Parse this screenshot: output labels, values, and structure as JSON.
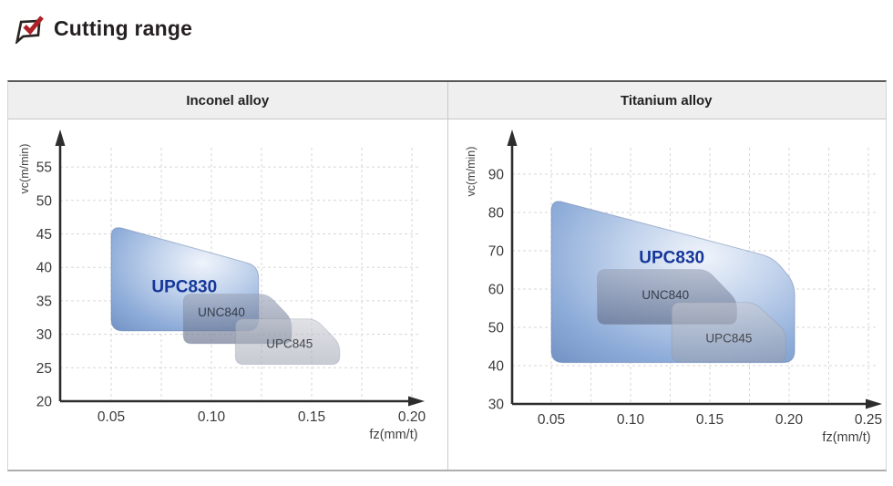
{
  "page_title": {
    "label": "Cutting range"
  },
  "title_icon": {
    "name": "checked-box-icon",
    "box_color": "#2a2423",
    "check_color": "#ae2025"
  },
  "panel_headers": {
    "left": "Inconel alloy",
    "right": "Titanium alloy"
  },
  "region_label_colors": {
    "UPC830": "#16379a",
    "UNC840": "#363d4b",
    "UPC845": "#46494f"
  },
  "chart_data": [
    {
      "type": "area",
      "panel": "Inconel alloy",
      "xlabel": "fz(mm/t)",
      "ylabel": "vc(m/min)",
      "xticks": [
        0.05,
        0.1,
        0.15,
        0.2
      ],
      "yticks": [
        20,
        25,
        30,
        35,
        40,
        45,
        50,
        55
      ],
      "xlim": [
        0.025,
        0.205
      ],
      "ylim": [
        20,
        59
      ],
      "grid": {
        "style": "dashed",
        "x_minor_step": 0.025
      },
      "regions": [
        {
          "name": "UPC830",
          "style": "blue",
          "label_size": 19,
          "polygon": [
            [
              0.05,
              46.3
            ],
            [
              0.1235,
              40.2
            ],
            [
              0.1235,
              30.5
            ],
            [
              0.05,
              30.5
            ]
          ],
          "label_pos": [
            0.0865,
            36.9
          ]
        },
        {
          "name": "UNC840",
          "style": "slate",
          "label_size": 13.5,
          "polygon": [
            [
              0.086,
              36.0
            ],
            [
              0.128,
              36.0
            ],
            [
              0.14,
              32.3
            ],
            [
              0.14,
              28.6
            ],
            [
              0.086,
              28.6
            ]
          ],
          "label_pos": [
            0.105,
            33.3
          ]
        },
        {
          "name": "UPC845",
          "style": "lightgray",
          "label_size": 13.5,
          "polygon": [
            [
              0.112,
              32.3
            ],
            [
              0.152,
              32.3
            ],
            [
              0.164,
              28.6
            ],
            [
              0.164,
              25.5
            ],
            [
              0.112,
              25.5
            ]
          ],
          "label_pos": [
            0.139,
            28.6
          ]
        }
      ]
    },
    {
      "type": "area",
      "panel": "Titanium alloy",
      "xlabel": "fz(mm/t)",
      "ylabel": "vc(m/min)",
      "xticks": [
        0.05,
        0.1,
        0.15,
        0.2,
        0.25
      ],
      "yticks": [
        30,
        40,
        50,
        60,
        70,
        80,
        90
      ],
      "xlim": [
        0.025,
        0.26
      ],
      "ylim": [
        30,
        97
      ],
      "grid": {
        "style": "dashed",
        "x_minor_step": 0.025
      },
      "regions": [
        {
          "name": "UPC830",
          "style": "blue",
          "label_size": 19,
          "polygon": [
            [
              0.05,
              83.5
            ],
            [
              0.19,
              68.2
            ],
            [
              0.2035,
              61.5
            ],
            [
              0.2035,
              40.8
            ],
            [
              0.05,
              40.8
            ]
          ],
          "label_pos": [
            0.126,
            67.9
          ]
        },
        {
          "name": "UNC840",
          "style": "slate",
          "label_size": 13.5,
          "polygon": [
            [
              0.079,
              65.1
            ],
            [
              0.148,
              65.1
            ],
            [
              0.167,
              57.0
            ],
            [
              0.167,
              50.8
            ],
            [
              0.079,
              50.8
            ]
          ],
          "label_pos": [
            0.122,
            58.4
          ]
        },
        {
          "name": "UPC845",
          "style": "lightgray",
          "label_size": 13.5,
          "polygon": [
            [
              0.126,
              56.5
            ],
            [
              0.178,
              56.5
            ],
            [
              0.198,
              48.9
            ],
            [
              0.198,
              41.0
            ],
            [
              0.126,
              41.0
            ]
          ],
          "label_pos": [
            0.162,
            47.2
          ]
        }
      ]
    }
  ]
}
